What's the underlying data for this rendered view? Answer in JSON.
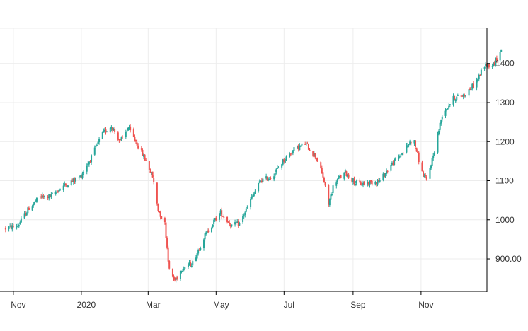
{
  "chart_data": {
    "type": "candlestick",
    "title": "",
    "xlabel": "",
    "ylabel": "",
    "x_ticks": [
      "Nov",
      "2020",
      "Mar",
      "May",
      "Jul",
      "Sep",
      "Nov"
    ],
    "y_ticks": [
      "900.00",
      "1000",
      "1100",
      "1200",
      "1300",
      "1400"
    ],
    "ylim": [
      815,
      1490
    ],
    "grid": true,
    "colors": {
      "up": "#26a69a",
      "down": "#ef5350",
      "grid": "#ececec",
      "axis": "#000000"
    },
    "anchors": [
      [
        "2019-10-25",
        978
      ],
      [
        "2019-11-05",
        985
      ],
      [
        "2019-11-15",
        1030
      ],
      [
        "2019-11-25",
        1058
      ],
      [
        "2019-12-05",
        1060
      ],
      [
        "2019-12-15",
        1085
      ],
      [
        "2019-12-31",
        1110
      ],
      [
        "2020-01-10",
        1160
      ],
      [
        "2020-01-20",
        1220
      ],
      [
        "2020-01-28",
        1240
      ],
      [
        "2020-02-05",
        1200
      ],
      [
        "2020-02-12",
        1235
      ],
      [
        "2020-02-20",
        1195
      ],
      [
        "2020-02-28",
        1150
      ],
      [
        "2020-03-05",
        1110
      ],
      [
        "2020-03-10",
        1025
      ],
      [
        "2020-03-16",
        990
      ],
      [
        "2020-03-20",
        870
      ],
      [
        "2020-03-25",
        845
      ],
      [
        "2020-03-31",
        875
      ],
      [
        "2020-04-10",
        890
      ],
      [
        "2020-04-20",
        955
      ],
      [
        "2020-04-30",
        1000
      ],
      [
        "2020-05-05",
        1018
      ],
      [
        "2020-05-15",
        985
      ],
      [
        "2020-05-22",
        990
      ],
      [
        "2020-06-01",
        1050
      ],
      [
        "2020-06-10",
        1100
      ],
      [
        "2020-06-20",
        1110
      ],
      [
        "2020-06-30",
        1150
      ],
      [
        "2020-07-10",
        1180
      ],
      [
        "2020-07-20",
        1195
      ],
      [
        "2020-07-30",
        1160
      ],
      [
        "2020-08-05",
        1110
      ],
      [
        "2020-08-10",
        1040
      ],
      [
        "2020-08-15",
        1095
      ],
      [
        "2020-08-25",
        1120
      ],
      [
        "2020-09-05",
        1090
      ],
      [
        "2020-09-15",
        1095
      ],
      [
        "2020-09-25",
        1100
      ],
      [
        "2020-10-05",
        1140
      ],
      [
        "2020-10-15",
        1170
      ],
      [
        "2020-10-25",
        1210
      ],
      [
        "2020-11-02",
        1120
      ],
      [
        "2020-11-06",
        1100
      ],
      [
        "2020-11-12",
        1165
      ],
      [
        "2020-11-20",
        1270
      ],
      [
        "2020-11-30",
        1310
      ],
      [
        "2020-12-10",
        1320
      ],
      [
        "2020-12-20",
        1350
      ],
      [
        "2020-12-28",
        1395
      ],
      [
        "2021-01-05",
        1398
      ],
      [
        "2021-01-12",
        1435
      ]
    ]
  }
}
